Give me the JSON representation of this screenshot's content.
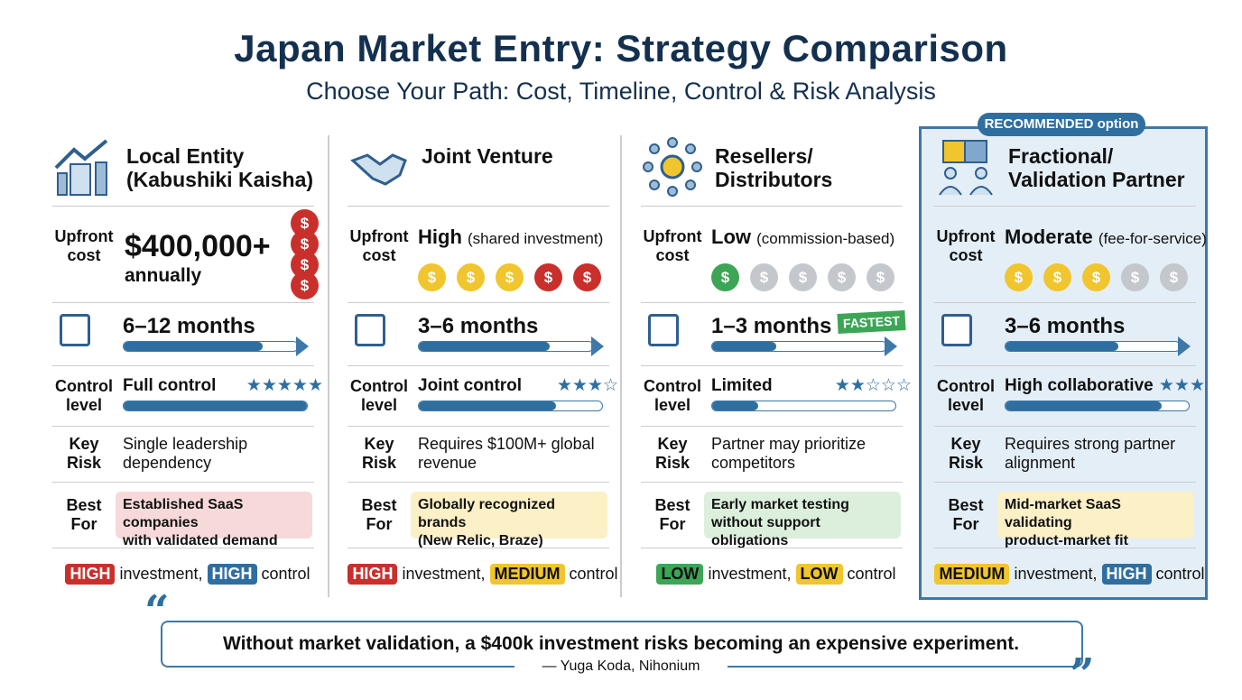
{
  "header": {
    "title": "Japan Market Entry: Strategy Comparison",
    "subtitle": "Choose Your Path: Cost, Timeline, Control & Risk Analysis"
  },
  "labels": {
    "upfront": "Upfront\ncost",
    "control": "Control\nlevel",
    "risk": "Key\nRisk",
    "best": "Best\nFor",
    "investment": "investment,",
    "control_word": "control"
  },
  "recommended_badge": "RECOMMENDED option",
  "colors": {
    "blue": "#2f6fa0",
    "red": "#c9302c",
    "yellow": "#f0c52e",
    "green": "#3da556",
    "gray": "#c4c8cd"
  },
  "columns": [
    {
      "name": "Local Entity\n(Kabushiki Kaisha)",
      "icon": "building-growth-icon",
      "cost_main": "$400,000+",
      "cost_note": "annually",
      "coins": [
        "red",
        "red",
        "red",
        "red"
      ],
      "timeline": "6–12 months",
      "timeline_fill": 0.8,
      "control": "Full control",
      "control_fill": 1.0,
      "stars_filled": 5,
      "stars_total": 5,
      "risk": "Single leadership\ndependency",
      "best_for": "Established SaaS companies\nwith validated demand",
      "best_bg": "#f7d9d9",
      "investment_level": "HIGH",
      "investment_color": "#c9302c",
      "control_level": "HIGH",
      "control_color": "#2f6fa0"
    },
    {
      "name": "Joint Venture",
      "icon": "handshake-icon",
      "cost_main": "High",
      "cost_note": "(shared investment)",
      "coins": [
        "yellow",
        "yellow",
        "yellow",
        "red",
        "red"
      ],
      "timeline": "3–6 months",
      "timeline_fill": 0.75,
      "control": "Joint control",
      "control_fill": 0.75,
      "stars_filled": 3,
      "stars_total": 4,
      "risk": "Requires $100M+ global\nrevenue",
      "best_for": "Globally recognized brands\n(New Relic, Braze)",
      "best_bg": "#fbf0c6",
      "investment_level": "HIGH",
      "investment_color": "#c9302c",
      "control_level": "MEDIUM",
      "control_color": "#f0c52e"
    },
    {
      "name": "Resellers/\nDistributors",
      "icon": "network-hub-icon",
      "cost_main": "Low",
      "cost_note": "(commission-based)",
      "coins": [
        "green",
        "gray",
        "gray",
        "gray",
        "gray"
      ],
      "timeline": "1–3 months",
      "timeline_fill": 0.37,
      "fastest": "FASTEST",
      "control": "Limited",
      "control_fill": 0.25,
      "stars_filled": 2,
      "stars_total": 5,
      "risk": "Partner may prioritize\ncompetitors",
      "best_for": "Early market testing\nwithout support obligations",
      "best_bg": "#dcefdc",
      "investment_level": "LOW",
      "investment_color": "#3da556",
      "control_level": "LOW",
      "control_color": "#f0c52e"
    },
    {
      "name": "Fractional/\nValidation Partner",
      "icon": "puzzle-partners-icon",
      "cost_main": "Moderate",
      "cost_note": "(fee-for-service)",
      "coins": [
        "yellow",
        "yellow",
        "yellow",
        "gray",
        "gray"
      ],
      "timeline": "3–6 months",
      "timeline_fill": 0.65,
      "control": "High collaborative",
      "control_fill": 0.85,
      "stars_filled": 3,
      "stars_total": 3,
      "risk": "Requires strong partner\nalignment",
      "best_for": "Mid-market SaaS validating\nproduct-market fit",
      "best_bg": "#fbf0c6",
      "investment_level": "MEDIUM",
      "investment_color": "#f0c52e",
      "control_level": "HIGH",
      "control_color": "#2f6fa0"
    }
  ],
  "quote": {
    "text": "Without market validation, a $400k investment risks becoming an expensive experiment.",
    "attribution": "— Yuga Koda, Nihonium",
    "open": "“",
    "close": "”"
  }
}
